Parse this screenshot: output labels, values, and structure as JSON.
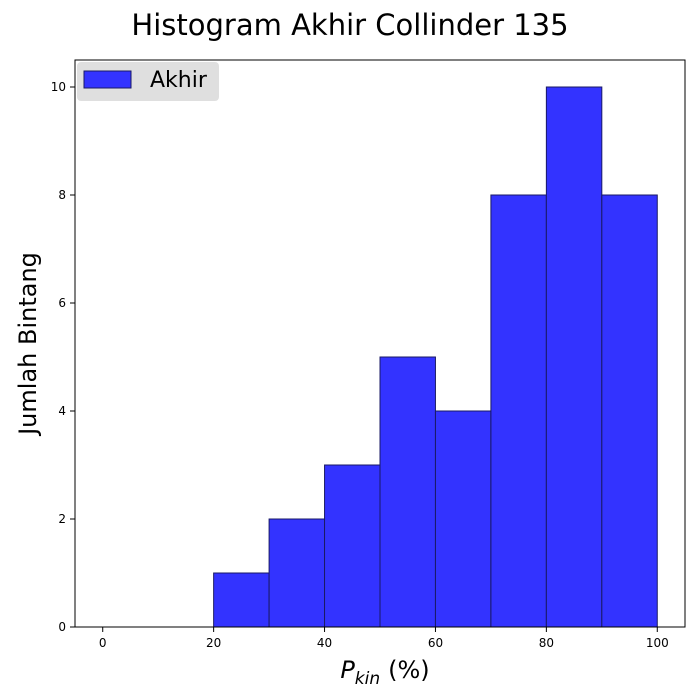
{
  "chart_data": {
    "type": "bar",
    "title": "Histogram Akhir Collinder 135",
    "xlabel_main": "P",
    "xlabel_sub": "kin",
    "xlabel_suffix": "(%)",
    "ylabel": "Jumlah Bintang",
    "bins": [
      {
        "x0": 20,
        "x1": 30,
        "count": 1
      },
      {
        "x0": 30,
        "x1": 40,
        "count": 2
      },
      {
        "x0": 40,
        "x1": 50,
        "count": 3
      },
      {
        "x0": 50,
        "x1": 60,
        "count": 5
      },
      {
        "x0": 60,
        "x1": 70,
        "count": 4
      },
      {
        "x0": 70,
        "x1": 80,
        "count": 8
      },
      {
        "x0": 80,
        "x1": 90,
        "count": 10
      },
      {
        "x0": 90,
        "x1": 100,
        "count": 8
      }
    ],
    "series": [
      {
        "name": "Akhir",
        "color": "#3333ff",
        "edgecolor": "#1a1a66"
      }
    ],
    "xlim": [
      -5,
      105
    ],
    "ylim": [
      0,
      10.5
    ],
    "xticks": [
      0,
      20,
      40,
      60,
      80,
      100
    ],
    "yticks": [
      0,
      2,
      4,
      6,
      8,
      10
    ],
    "grid": false,
    "legend_position": "top-left"
  }
}
